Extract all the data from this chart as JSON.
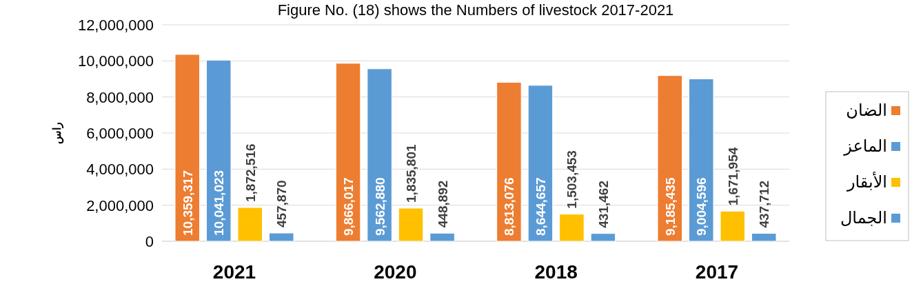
{
  "chart_data": {
    "type": "bar",
    "title": "Figure No. (18) shows the Numbers of livestock 2017-2021",
    "ylabel": "راس",
    "categories": [
      "2021",
      "2020",
      "2018",
      "2017"
    ],
    "series": [
      {
        "name": "الضان",
        "color": "#ed7d31",
        "values": [
          10359317,
          9866017,
          8813076,
          9185435
        ],
        "value_labels": [
          "10,359,317",
          "9,866,017",
          "8,813,076",
          "9,185,435"
        ]
      },
      {
        "name": "الماعز",
        "color": "#5b9bd5",
        "values": [
          10041023,
          9562880,
          8644657,
          9004596
        ],
        "value_labels": [
          "10,041,023",
          "9,562,880",
          "8,644,657",
          "9,004,596"
        ]
      },
      {
        "name": "الأبقار",
        "color": "#ffc000",
        "values": [
          1872516,
          1835801,
          1503453,
          1671954
        ],
        "value_labels": [
          "1,872,516",
          "1,835,801",
          "1,503,453",
          "1,671,954"
        ]
      },
      {
        "name": "الجمال",
        "color": "#5b9bd5",
        "values": [
          457870,
          448892,
          431462,
          437712
        ],
        "value_labels": [
          "457,870",
          "448,892",
          "431,462",
          "437,712"
        ]
      }
    ],
    "ylim": [
      0,
      12000000
    ],
    "yticks": [
      {
        "value": 0,
        "label": "0"
      },
      {
        "value": 2000000,
        "label": "2,000,000"
      },
      {
        "value": 4000000,
        "label": "4,000,000"
      },
      {
        "value": 6000000,
        "label": "6,000,000"
      },
      {
        "value": 8000000,
        "label": "8,000,000"
      },
      {
        "value": 10000000,
        "label": "10,000,000"
      },
      {
        "value": 12000000,
        "label": "12,000,000"
      }
    ],
    "grid": "y",
    "legend": "right"
  }
}
